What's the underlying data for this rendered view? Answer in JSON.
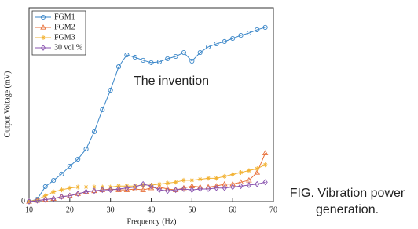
{
  "chart_data": {
    "type": "line",
    "x_label": "Frequency (Hz)",
    "y_label": "Output Voltage (mV)",
    "annotation": "The invention",
    "caption": "FIG. Vibration power generation.",
    "x": [
      10,
      12,
      14,
      16,
      18,
      20,
      22,
      24,
      26,
      28,
      30,
      32,
      34,
      36,
      38,
      40,
      42,
      44,
      46,
      48,
      50,
      52,
      54,
      56,
      58,
      60,
      62,
      64,
      66,
      68
    ],
    "series": [
      {
        "name": "FGM1",
        "color": "#3a86c8",
        "marker": "circle",
        "values": [
          0,
          1.2,
          7.7,
          10.9,
          14.2,
          18.2,
          21.9,
          27.1,
          36.0,
          47.4,
          57.5,
          69.6,
          75.7,
          74.5,
          72.9,
          71.7,
          72.1,
          73.7,
          74.9,
          76.9,
          72.5,
          76.9,
          79.8,
          81.4,
          82.6,
          84.2,
          85.8,
          87.0,
          88.7,
          89.9
        ]
      },
      {
        "name": "FGM2",
        "color": "#e8703a",
        "marker": "triangle",
        "values": [
          0,
          0.5,
          1,
          1.5,
          2.5,
          3,
          4,
          5,
          5.5,
          6,
          6.5,
          6,
          6,
          6.5,
          6,
          7,
          7.5,
          6.5,
          6,
          7,
          8,
          7.5,
          7.5,
          8,
          9,
          9,
          10,
          11,
          15,
          25
        ]
      },
      {
        "name": "FGM3",
        "color": "#f2b233",
        "marker": "star",
        "values": [
          0,
          1,
          3,
          5,
          6,
          7,
          7.5,
          7.5,
          7.5,
          7.5,
          7.5,
          8,
          8,
          8,
          8.5,
          8.5,
          9,
          9.5,
          10,
          11,
          11,
          11.5,
          12,
          12,
          13,
          14,
          15,
          16,
          17,
          19
        ]
      },
      {
        "name": "30 vol.%",
        "color": "#8a55b0",
        "marker": "diamond",
        "values": [
          0,
          0.5,
          1,
          1.5,
          2.5,
          3,
          4,
          5,
          5.5,
          6,
          6,
          6.5,
          7,
          7.5,
          9,
          8,
          6,
          5.5,
          6,
          6.5,
          6,
          6.5,
          6.5,
          7,
          7,
          7.5,
          8,
          8.5,
          9,
          10
        ]
      }
    ],
    "xlim": [
      10,
      70
    ],
    "xticks": [
      10,
      20,
      30,
      40,
      50,
      60,
      70
    ],
    "ylim": [
      0,
      100
    ],
    "yticks": [
      0
    ],
    "legend": "upper left"
  }
}
